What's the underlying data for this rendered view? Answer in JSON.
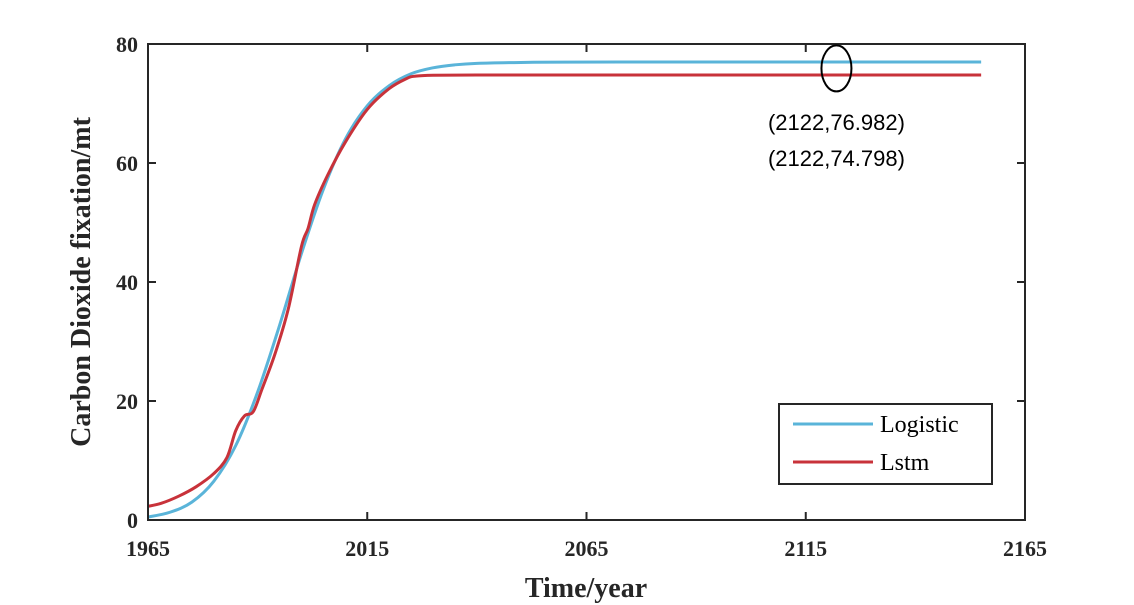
{
  "chart_data": {
    "type": "line",
    "xlabel": "Time/year",
    "ylabel": "Carbon Dioxide fixation/mt",
    "xlim": [
      1965,
      2165
    ],
    "ylim": [
      0,
      80
    ],
    "xticks": [
      1965,
      2015,
      2065,
      2115,
      2165
    ],
    "yticks": [
      0,
      20,
      40,
      60,
      80
    ],
    "grid": false,
    "legend_position": "bottom-right",
    "series": [
      {
        "name": "Logistic",
        "color": "#5ab4d9",
        "x": [
          1965,
          1970,
          1975,
          1980,
          1985,
          1990,
          1995,
          2000,
          2005,
          2010,
          2015,
          2020,
          2025,
          2030,
          2035,
          2040,
          2050,
          2060,
          2080,
          2100,
          2120,
          2140,
          2155
        ],
        "y": [
          0.5,
          1.3,
          3.0,
          6.5,
          12.5,
          21.5,
          32.7,
          44.8,
          55.6,
          64.0,
          69.6,
          73.0,
          75.0,
          76.0,
          76.5,
          76.75,
          76.9,
          76.95,
          76.97,
          76.98,
          76.982,
          76.982,
          76.982
        ]
      },
      {
        "name": "Lstm",
        "color": "#c8323a",
        "x": [
          1965,
          1968,
          1972,
          1976,
          1980,
          1983,
          1985,
          1987,
          1989,
          1991,
          1994,
          1997,
          2000,
          2001.5,
          2003,
          2006,
          2010,
          2015,
          2020,
          2024,
          2026,
          2030,
          2040,
          2060,
          2100,
          2122,
          2155
        ],
        "y": [
          2.3,
          2.8,
          4.0,
          5.6,
          7.8,
          10.5,
          15.0,
          17.5,
          18.2,
          22.0,
          28.0,
          35.5,
          46.0,
          49.0,
          53.0,
          58.0,
          63.5,
          69.0,
          72.5,
          74.2,
          74.6,
          74.75,
          74.79,
          74.795,
          74.798,
          74.798,
          74.798
        ]
      }
    ],
    "annotations": [
      {
        "text": "(2122,76.982)",
        "x": 2122,
        "y": 76.982
      },
      {
        "text": "(2122,74.798)",
        "x": 2122,
        "y": 74.798
      }
    ],
    "highlight": {
      "x": 2122,
      "y": 75.9
    }
  }
}
